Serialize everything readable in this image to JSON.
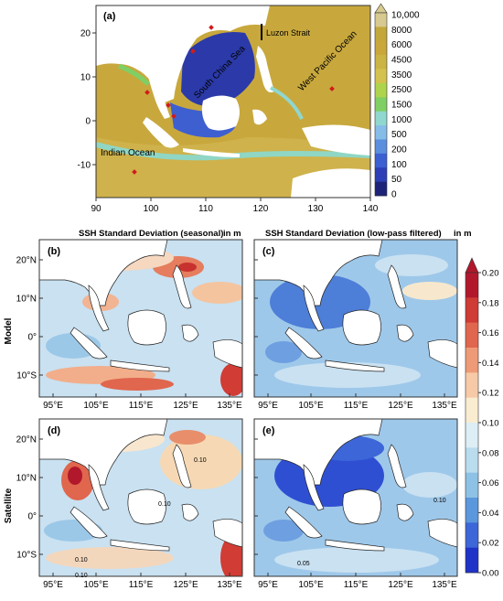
{
  "top_panel": {
    "label": "(a)",
    "regions": {
      "luzon_strait": "Luzon Strait",
      "south_china_sea": "South China Sea",
      "west_pacific": "West Pacific Ocean",
      "indian_ocean": "Indian Ocean"
    },
    "x_ticks": [
      "90",
      "100",
      "110",
      "120",
      "130",
      "140"
    ],
    "y_ticks": [
      "20",
      "10",
      "0",
      "-10"
    ],
    "colorbar_ticks": [
      "10,000",
      "8000",
      "6000",
      "4500",
      "3500",
      "2500",
      "1500",
      "1000",
      "500",
      "200",
      "100",
      "50",
      "0"
    ],
    "colorbar_colors": [
      "#d7c98f",
      "#c4a73a",
      "#c9a73b",
      "#cbb443",
      "#d4c24e",
      "#aed44c",
      "#7fcf64",
      "#8fd7cf",
      "#86bce8",
      "#5b8fde",
      "#3c5fd1",
      "#2d3fb6",
      "#1d2379"
    ]
  },
  "column_titles": {
    "left": "SSH Standard Deviation (seasonal)",
    "right": "SSH Standard Deviation (low-pass filtered)",
    "unit_left": "in m",
    "unit_right": "in m"
  },
  "row_labels": {
    "model": "Model",
    "satellite": "Satellite"
  },
  "panels": {
    "b": "(b)",
    "c": "(c)",
    "d": "(d)",
    "e": "(e)"
  },
  "contour_labels": {
    "d_1": "0.10",
    "d_2": "0.10",
    "d_3": "0.10",
    "d_4": "0.10",
    "e_1": "0.10",
    "e_2": "0.05"
  },
  "lon_ticks": [
    "95°E",
    "105°E",
    "115°E",
    "125°E",
    "135°E"
  ],
  "lat_ticks": [
    "20°N",
    "10°N",
    "0°",
    "10°S"
  ],
  "colorbar_ssh": {
    "ticks": [
      "0.20",
      "0.18",
      "0.16",
      "0.14",
      "0.12",
      "0.10",
      "0.08",
      "0.06",
      "0.04",
      "0.02",
      "0.00"
    ],
    "colors": [
      "#b2182b",
      "#cf3b35",
      "#e0664d",
      "#ee9a76",
      "#f7c9a6",
      "#f9ecd0",
      "#ddeef5",
      "#b9dcee",
      "#8dc2e6",
      "#5b97dc",
      "#3d66d8",
      "#1f32c8"
    ]
  }
}
